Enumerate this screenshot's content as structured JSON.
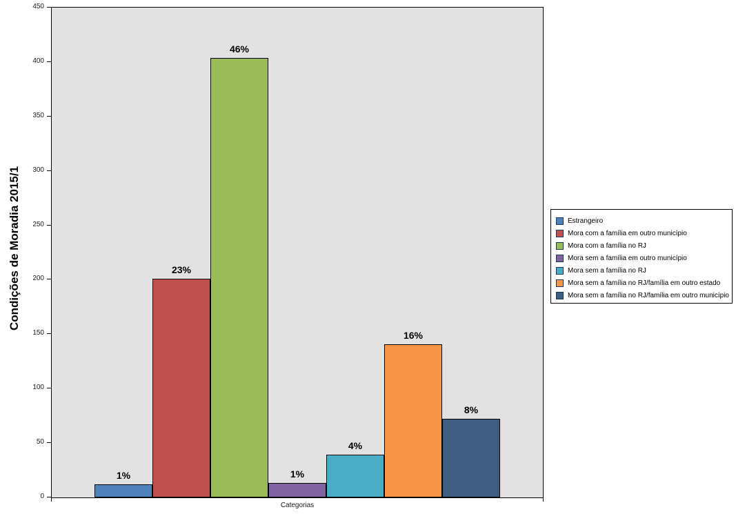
{
  "chart_data": {
    "type": "bar",
    "title": "",
    "ylabel": "Condições de Moradia 2015/1",
    "xlabel": "Categorias",
    "categories": [
      "Estrangeiro",
      "Mora com a família em outro município",
      "Mora com a família no RJ",
      "Mora sem a família em outro município",
      "Mora sem a família no RJ",
      "Mora sem a família no RJ/família em outro estado",
      "Mora sem a família no RJ/família em outro município"
    ],
    "values": [
      12,
      201,
      404,
      13,
      39,
      141,
      72
    ],
    "bar_labels": [
      "1%",
      "23%",
      "46%",
      "1%",
      "4%",
      "16%",
      "8%"
    ],
    "colors": [
      "#4F81BD",
      "#C0504D",
      "#9BBB59",
      "#8064A2",
      "#4BACC6",
      "#F79646",
      "#3F5D80"
    ],
    "ylim": [
      0,
      450
    ],
    "yticks": [
      0,
      50,
      100,
      150,
      200,
      250,
      300,
      350,
      400,
      450
    ],
    "grid": false,
    "legend_position": "right",
    "plot_background": "#E2E2E2"
  },
  "legend": {
    "items": [
      {
        "label": "Estrangeiro",
        "color": "#4F81BD"
      },
      {
        "label": "Mora com a família em outro município",
        "color": "#C0504D"
      },
      {
        "label": "Mora com a família no RJ",
        "color": "#9BBB59"
      },
      {
        "label": "Mora sem a família em outro município",
        "color": "#8064A2"
      },
      {
        "label": "Mora sem a família no RJ",
        "color": "#4BACC6"
      },
      {
        "label": "Mora sem a família no RJ/família em outro estado",
        "color": "#F79646"
      },
      {
        "label": "Mora sem a família no RJ/família em outro município",
        "color": "#3F5D80"
      }
    ]
  }
}
